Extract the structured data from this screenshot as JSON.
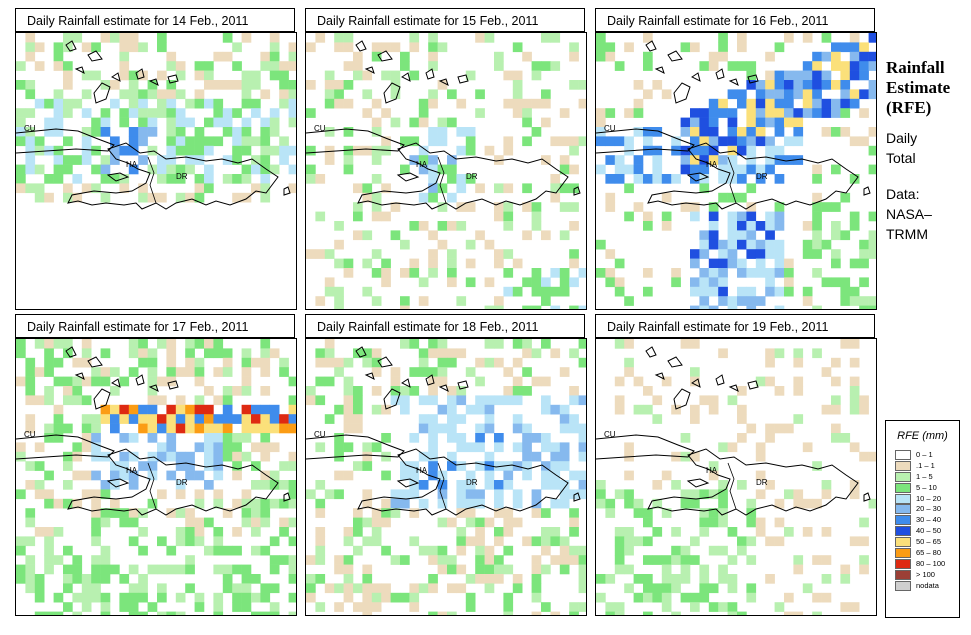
{
  "panels": [
    {
      "title": "Daily Rainfall estimate for  14 Feb., 2011",
      "seed": 14,
      "scene": "p14"
    },
    {
      "title": "Daily Rainfall estimate for  15 Feb., 2011",
      "seed": 15,
      "scene": "p15"
    },
    {
      "title": "Daily Rainfall estimate for  16 Feb., 2011",
      "seed": 16,
      "scene": "p16"
    },
    {
      "title": "Daily Rainfall estimate for  17 Feb., 2011",
      "seed": 17,
      "scene": "p17"
    },
    {
      "title": "Daily Rainfall estimate for  18 Feb., 2011",
      "seed": 18,
      "scene": "p18"
    },
    {
      "title": "Daily Rainfall estimate for  19 Feb., 2011",
      "seed": 19,
      "scene": "p19"
    }
  ],
  "map_labels": {
    "cu": "CU",
    "ha": "HA",
    "dr": "DR"
  },
  "sidebar": {
    "title_line1": "Rainfall",
    "title_line2": "Estimate",
    "title_line3": "(RFE)",
    "line1": "Daily",
    "line2": "Total",
    "line3": "Data:",
    "line4": "NASA–",
    "line5": "TRMM"
  },
  "legend": {
    "title": "RFE (mm)",
    "items": [
      {
        "label": "0 – 1",
        "color": "#ffffff"
      },
      {
        "label": ".1 – 1",
        "color": "#eddbbd"
      },
      {
        "label": "1 – 5",
        "color": "#b8f0b0"
      },
      {
        "label": "5 – 10",
        "color": "#7ce57c"
      },
      {
        "label": "10 – 20",
        "color": "#b9e4f7"
      },
      {
        "label": "20 – 30",
        "color": "#86b9ee"
      },
      {
        "label": "30 – 40",
        "color": "#3f8cec"
      },
      {
        "label": "40 – 50",
        "color": "#1f4fe0"
      },
      {
        "label": "50 – 65",
        "color": "#fbe07a"
      },
      {
        "label": "65 – 80",
        "color": "#fb9c14"
      },
      {
        "label": "80 – 100",
        "color": "#de2a12"
      },
      {
        "label": "> 100",
        "color": "#9b3f36"
      },
      {
        "label": "nodata",
        "color": "#cfcfcf"
      }
    ]
  }
}
